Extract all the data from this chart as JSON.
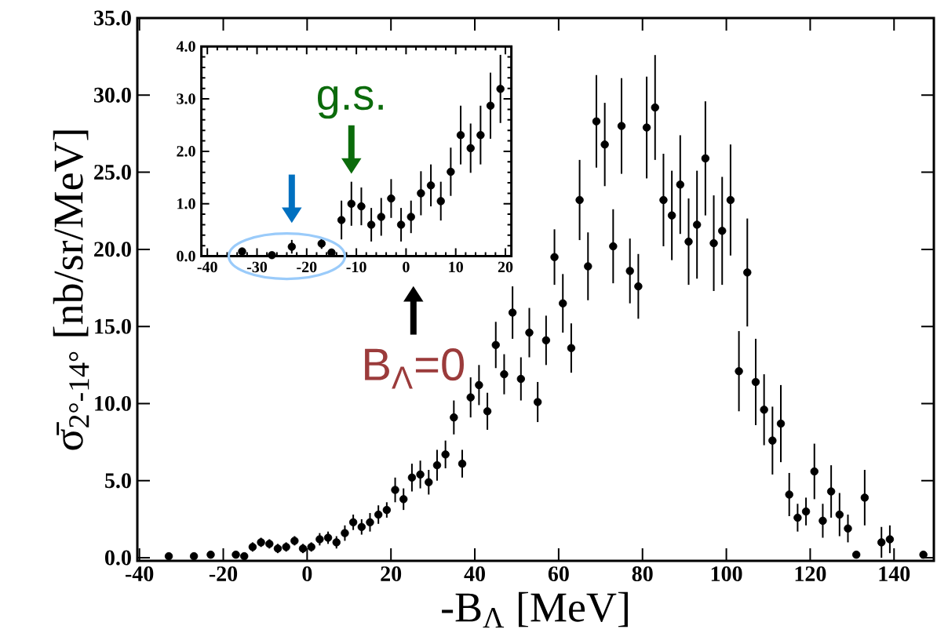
{
  "chart_data": [
    {
      "type": "scatter",
      "xlabel": "-B$_{Λ}$ [MeV]",
      "ylabel": "σ̄$_{2°-14°}$ [nb/sr/MeV]",
      "color": "#000000",
      "x": [
        -33,
        -27,
        -23,
        -17,
        -15,
        -13,
        -11,
        -9,
        -7,
        -5,
        -3,
        -1,
        1,
        3,
        5,
        7,
        9,
        11,
        13,
        15,
        17,
        19,
        21,
        23,
        25,
        27,
        29,
        31,
        33,
        35,
        37,
        39,
        41,
        43,
        45,
        47,
        49,
        51,
        53,
        55,
        57,
        59,
        61,
        63,
        65,
        67,
        69,
        71,
        73,
        75,
        77,
        79,
        81,
        83,
        85,
        87,
        89,
        91,
        93,
        95,
        97,
        99,
        101,
        103,
        105,
        107,
        109,
        111,
        113,
        115,
        117,
        119,
        121,
        123,
        125,
        127,
        129,
        131,
        133,
        137,
        139,
        147
      ],
      "values": [
        0.1,
        0.1,
        0.2,
        0.2,
        0.1,
        0.7,
        1.0,
        0.9,
        0.6,
        0.7,
        1.1,
        0.6,
        0.7,
        1.2,
        1.3,
        1.0,
        1.6,
        2.3,
        2.0,
        2.3,
        2.8,
        3.1,
        4.4,
        3.8,
        5.2,
        5.4,
        4.9,
        6.0,
        6.7,
        9.1,
        6.1,
        10.4,
        11.2,
        9.5,
        13.8,
        11.9,
        15.9,
        11.6,
        14.6,
        10.1,
        14.1,
        19.5,
        16.5,
        13.6,
        23.2,
        18.9,
        28.3,
        26.8,
        20.2,
        28.0,
        18.6,
        17.6,
        27.9,
        29.2,
        23.2,
        22.2,
        24.2,
        20.5,
        21.6,
        25.9,
        20.4,
        21.2,
        23.2,
        12.1,
        18.5,
        11.4,
        9.6,
        7.6,
        8.7,
        4.1,
        2.6,
        3.0,
        5.6,
        2.4,
        4.3,
        2.8,
        1.9,
        0.2,
        3.9,
        1.0,
        1.2,
        0.2
      ],
      "errors": [
        null,
        null,
        null,
        0.2,
        null,
        0.3,
        0.3,
        0.3,
        0.3,
        0.3,
        0.3,
        0.3,
        0.3,
        0.4,
        0.4,
        0.4,
        0.5,
        0.5,
        0.5,
        0.6,
        0.6,
        0.5,
        0.8,
        0.7,
        0.9,
        0.9,
        0.8,
        1.0,
        0.9,
        1.1,
        0.9,
        1.3,
        1.3,
        1.2,
        1.5,
        1.3,
        1.7,
        1.4,
        1.6,
        1.3,
        1.6,
        1.8,
        1.9,
        1.6,
        2.6,
        2.2,
        3.0,
        2.7,
        2.4,
        3.1,
        2.1,
        2.1,
        3.3,
        3.4,
        3.0,
        2.9,
        3.2,
        2.8,
        3.5,
        3.7,
        3.1,
        3.5,
        3.6,
        2.6,
        3.5,
        2.8,
        2.3,
        2.2,
        2.5,
        1.4,
        0.9,
        0.9,
        1.8,
        1.1,
        1.7,
        1.4,
        0.9,
        null,
        1.8,
        1.0,
        0.9,
        null
      ],
      "xlim": [
        -40.5,
        149.5
      ],
      "ylim": [
        -0.2,
        35
      ],
      "xticks": [
        -40,
        -20,
        0,
        20,
        40,
        60,
        80,
        100,
        120,
        140
      ],
      "yticks": [
        {
          "value": 0,
          "label": "0.0"
        },
        {
          "value": 5,
          "label": "5.0"
        },
        {
          "value": 10,
          "label": "10.0"
        },
        {
          "value": 15,
          "label": "15.0"
        },
        {
          "value": 20,
          "label": "20.0"
        },
        {
          "value": 25,
          "label": "25.0"
        },
        {
          "value": 30,
          "label": "30.0"
        },
        {
          "value": 35,
          "label": "35.0"
        }
      ]
    },
    {
      "type": "scatter",
      "color": "#000000",
      "x": [
        -33,
        -27,
        -23,
        -17,
        -15,
        -13,
        -11,
        -9,
        -7,
        -5,
        -3,
        -1,
        1,
        3,
        5,
        7,
        9,
        11,
        13,
        15,
        17,
        19
      ],
      "values": [
        0.09,
        0.02,
        0.18,
        0.24,
        0.07,
        0.69,
        1.0,
        0.95,
        0.6,
        0.75,
        1.1,
        0.6,
        0.75,
        1.2,
        1.35,
        1.05,
        1.61,
        2.31,
        2.06,
        2.31,
        2.87,
        3.19
      ],
      "errors": [
        null,
        null,
        0.13,
        0.1,
        0.07,
        0.37,
        0.42,
        0.36,
        0.32,
        0.36,
        0.37,
        0.32,
        0.31,
        0.42,
        0.4,
        0.37,
        0.46,
        0.56,
        0.47,
        0.56,
        0.63,
        0.65
      ],
      "xlim": [
        -41.2,
        21.2
      ],
      "ylim": [
        0,
        4
      ],
      "xticks": [
        -40,
        -30,
        -20,
        -10,
        0,
        10,
        20
      ],
      "yticks": [
        {
          "value": 0,
          "label": "0.0"
        },
        {
          "value": 1,
          "label": "1.0"
        },
        {
          "value": 2,
          "label": "2.0"
        },
        {
          "value": 3,
          "label": "3.0"
        },
        {
          "value": 4,
          "label": "4.0"
        }
      ],
      "annotations": [
        {
          "text": "g.s.",
          "x": -11,
          "y": 1.0
        },
        "B$_{Λ}$=0"
      ]
    }
  ]
}
